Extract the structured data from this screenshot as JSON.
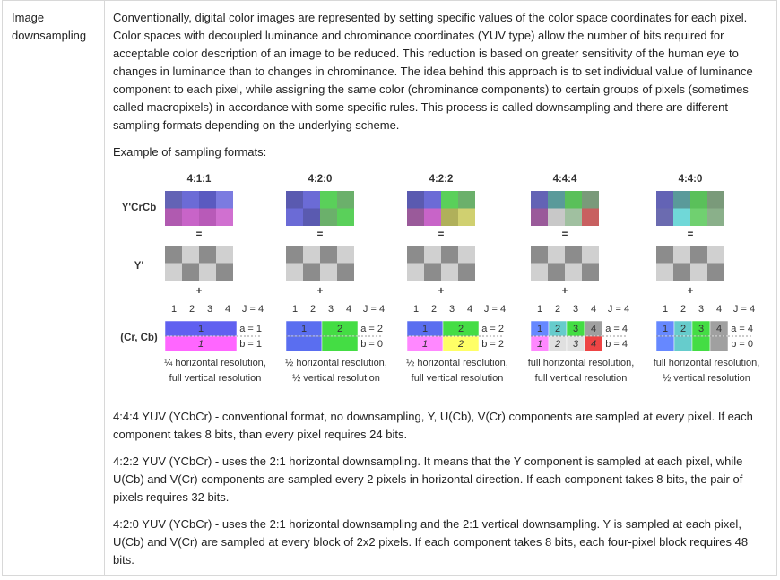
{
  "row": {
    "label": "Image downsampling",
    "paragraphs": [
      "Conventionally, digital color images are represented by setting specific values of the color space coordinates for each pixel. Color spaces with decoupled luminance and chrominance coordinates (YUV type) allow the number of bits required for acceptable color description of an image to be reduced. This reduction is based on greater sensitivity of the human eye to changes in luminance than to changes in chrominance. The idea behind this approach is to set individual value of luminance component to each pixel, while assigning the same color (chrominance components) to certain groups of pixels (sometimes called macropixels) in accordance with some specific rules. This process is called downsampling and there are different sampling formats depending on the underlying scheme."
    ],
    "example_caption": "Example of sampling formats:",
    "figure": {
      "row_labels": [
        "Y'CrCb",
        "Y'",
        "(Cr, Cb)"
      ],
      "equals": "=",
      "plus": "+",
      "formats": [
        {
          "title": "4:1:1",
          "scale": [
            "1",
            "2",
            "3",
            "4",
            "J = 4"
          ],
          "chroma_top": [
            "1"
          ],
          "chroma_bottom": [
            "1"
          ],
          "a": "a = 1",
          "b": "b = 1",
          "caption": [
            "¼ horizontal resolution,",
            "full vertical resolution"
          ]
        },
        {
          "title": "4:2:0",
          "scale": [
            "1",
            "2",
            "3",
            "4",
            "J = 4"
          ],
          "chroma_top": [
            "1",
            "2"
          ],
          "chroma_bottom": [
            null,
            null
          ],
          "a": "a = 2",
          "b": "b = 0",
          "caption": [
            "½ horizontal resolution,",
            "½ vertical resolution"
          ]
        },
        {
          "title": "4:2:2",
          "scale": [
            "1",
            "2",
            "3",
            "4",
            "J = 4"
          ],
          "chroma_top": [
            "1",
            "2"
          ],
          "chroma_bottom": [
            "1",
            "2"
          ],
          "a": "a = 2",
          "b": "b = 2",
          "caption": [
            "½ horizontal resolution,",
            "full vertical resolution"
          ]
        },
        {
          "title": "4:4:4",
          "scale": [
            "1",
            "2",
            "3",
            "4",
            "J = 4"
          ],
          "chroma_top": [
            "1",
            "2",
            "3",
            "4"
          ],
          "chroma_bottom": [
            "1",
            "2",
            "3",
            "4"
          ],
          "a": "a = 4",
          "b": "b = 4",
          "caption": [
            "full horizontal resolution,",
            "full vertical resolution"
          ]
        },
        {
          "title": "4:4:0",
          "scale": [
            "1",
            "2",
            "3",
            "4",
            "J = 4"
          ],
          "chroma_top": [
            "1",
            "2",
            "3",
            "4"
          ],
          "chroma_bottom": [
            null,
            null,
            null,
            null
          ],
          "a": "a = 4",
          "b": "b = 0",
          "caption": [
            "full horizontal resolution,",
            "½ vertical resolution"
          ]
        }
      ]
    },
    "notes": [
      "4:4:4 YUV (YCbCr) - conventional format, no downsampling, Y, U(Cb), V(Cr) components are sampled at every pixel. If each component takes 8 bits, than every pixel requires 24 bits.",
      "4:2:2 YUV (YCbCr) - uses the 2:1 horizontal downsampling. It means that the Y component is sampled at each pixel, while U(Cb) and V(Cr) components are sampled every 2 pixels in horizontal direction. If each component takes 8 bits, the pair of pixels requires 32 bits.",
      "4:2:0  YUV (YCbCr) - uses the 2:1 horizontal downsampling and the 2:1 vertical downsampling. Y is sampled at each pixel, U(Cb) and V(Cr) are sampled at every block of 2x2 pixels. If each component takes 8 bits, each four-pixel block requires 48 bits."
    ]
  }
}
